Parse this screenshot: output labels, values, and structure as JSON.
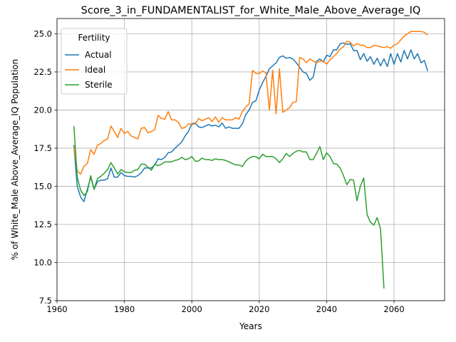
{
  "chart_data": {
    "type": "line",
    "title": "Score_3_in_FUNDAMENTALIST_for_White_Male_Above_Average_IQ",
    "xlabel": "Years",
    "ylabel": "% of White_Male Above_Average_IQ Population",
    "xlim": [
      1960,
      2075
    ],
    "ylim": [
      7.5,
      26.0
    ],
    "xticks": [
      1960,
      1980,
      2000,
      2020,
      2040,
      2060
    ],
    "yticks": [
      7.5,
      10.0,
      12.5,
      15.0,
      17.5,
      20.0,
      22.5,
      25.0
    ],
    "grid": true,
    "legend": {
      "title": "Fertility",
      "position": "upper-left"
    },
    "series": [
      {
        "name": "Actual",
        "color": "#1f77b4",
        "points": [
          [
            1965,
            17.7
          ],
          [
            1966,
            15.0
          ],
          [
            1967,
            14.3
          ],
          [
            1968,
            14.0
          ],
          [
            1969,
            14.8
          ],
          [
            1970,
            15.6
          ],
          [
            1971,
            14.8
          ],
          [
            1972,
            15.3
          ],
          [
            1973,
            15.4
          ],
          [
            1974,
            15.4
          ],
          [
            1975,
            15.5
          ],
          [
            1976,
            16.2
          ],
          [
            1977,
            15.6
          ],
          [
            1978,
            15.6
          ],
          [
            1979,
            15.9
          ],
          [
            1980,
            15.7
          ],
          [
            1981,
            15.65
          ],
          [
            1982,
            15.65
          ],
          [
            1983,
            15.6
          ],
          [
            1984,
            15.7
          ],
          [
            1985,
            15.9
          ],
          [
            1986,
            16.2
          ],
          [
            1987,
            16.2
          ],
          [
            1988,
            16.2
          ],
          [
            1989,
            16.4
          ],
          [
            1990,
            16.8
          ],
          [
            1991,
            16.75
          ],
          [
            1992,
            16.9
          ],
          [
            1993,
            17.2
          ],
          [
            1994,
            17.25
          ],
          [
            1995,
            17.5
          ],
          [
            1996,
            17.7
          ],
          [
            1997,
            17.9
          ],
          [
            1998,
            18.3
          ],
          [
            1999,
            18.6
          ],
          [
            2000,
            19.1
          ],
          [
            2001,
            19.15
          ],
          [
            2002,
            18.9
          ],
          [
            2003,
            18.85
          ],
          [
            2004,
            18.95
          ],
          [
            2005,
            19.05
          ],
          [
            2006,
            18.95
          ],
          [
            2007,
            19.0
          ],
          [
            2008,
            18.9
          ],
          [
            2009,
            19.15
          ],
          [
            2010,
            18.8
          ],
          [
            2011,
            18.9
          ],
          [
            2012,
            18.8
          ],
          [
            2013,
            18.8
          ],
          [
            2014,
            18.8
          ],
          [
            2015,
            19.1
          ],
          [
            2016,
            19.7
          ],
          [
            2017,
            20.0
          ],
          [
            2018,
            20.5
          ],
          [
            2019,
            20.6
          ],
          [
            2020,
            21.3
          ],
          [
            2021,
            21.8
          ],
          [
            2022,
            22.2
          ],
          [
            2023,
            22.7
          ],
          [
            2024,
            22.9
          ],
          [
            2025,
            23.1
          ],
          [
            2026,
            23.45
          ],
          [
            2027,
            23.55
          ],
          [
            2028,
            23.4
          ],
          [
            2029,
            23.45
          ],
          [
            2030,
            23.35
          ],
          [
            2031,
            23.1
          ],
          [
            2032,
            22.8
          ],
          [
            2033,
            22.5
          ],
          [
            2034,
            22.4
          ],
          [
            2035,
            21.95
          ],
          [
            2036,
            22.15
          ],
          [
            2037,
            23.2
          ],
          [
            2038,
            23.35
          ],
          [
            2039,
            23.15
          ],
          [
            2040,
            23.6
          ],
          [
            2041,
            23.5
          ],
          [
            2042,
            23.95
          ],
          [
            2043,
            23.95
          ],
          [
            2044,
            24.35
          ],
          [
            2045,
            24.4
          ],
          [
            2046,
            24.3
          ],
          [
            2047,
            24.35
          ],
          [
            2048,
            23.9
          ],
          [
            2049,
            23.9
          ],
          [
            2050,
            23.3
          ],
          [
            2051,
            23.7
          ],
          [
            2052,
            23.2
          ],
          [
            2053,
            23.5
          ],
          [
            2054,
            23.0
          ],
          [
            2055,
            23.4
          ],
          [
            2056,
            22.9
          ],
          [
            2057,
            23.35
          ],
          [
            2058,
            22.85
          ],
          [
            2059,
            23.7
          ],
          [
            2060,
            23.0
          ],
          [
            2061,
            23.7
          ],
          [
            2062,
            23.15
          ],
          [
            2063,
            23.9
          ],
          [
            2064,
            23.35
          ],
          [
            2065,
            23.95
          ],
          [
            2066,
            23.35
          ],
          [
            2067,
            23.7
          ],
          [
            2068,
            23.1
          ],
          [
            2069,
            23.25
          ],
          [
            2070,
            22.55
          ]
        ]
      },
      {
        "name": "Ideal",
        "color": "#ff7f0e",
        "points": [
          [
            1965,
            17.6
          ],
          [
            1966,
            16.0
          ],
          [
            1967,
            15.8
          ],
          [
            1968,
            16.3
          ],
          [
            1969,
            16.5
          ],
          [
            1970,
            17.4
          ],
          [
            1971,
            17.1
          ],
          [
            1972,
            17.7
          ],
          [
            1973,
            17.8
          ],
          [
            1974,
            18.0
          ],
          [
            1975,
            18.1
          ],
          [
            1976,
            18.95
          ],
          [
            1977,
            18.6
          ],
          [
            1978,
            18.2
          ],
          [
            1979,
            18.8
          ],
          [
            1980,
            18.45
          ],
          [
            1981,
            18.6
          ],
          [
            1982,
            18.3
          ],
          [
            1983,
            18.2
          ],
          [
            1984,
            18.1
          ],
          [
            1985,
            18.8
          ],
          [
            1986,
            18.85
          ],
          [
            1987,
            18.5
          ],
          [
            1988,
            18.6
          ],
          [
            1989,
            18.7
          ],
          [
            1990,
            19.65
          ],
          [
            1991,
            19.45
          ],
          [
            1992,
            19.4
          ],
          [
            1993,
            19.9
          ],
          [
            1994,
            19.35
          ],
          [
            1995,
            19.35
          ],
          [
            1996,
            19.2
          ],
          [
            1997,
            18.8
          ],
          [
            1998,
            18.85
          ],
          [
            1999,
            19.1
          ],
          [
            2000,
            19.05
          ],
          [
            2001,
            19.1
          ],
          [
            2002,
            19.45
          ],
          [
            2003,
            19.3
          ],
          [
            2004,
            19.4
          ],
          [
            2005,
            19.5
          ],
          [
            2006,
            19.25
          ],
          [
            2007,
            19.55
          ],
          [
            2008,
            19.2
          ],
          [
            2009,
            19.5
          ],
          [
            2010,
            19.35
          ],
          [
            2011,
            19.35
          ],
          [
            2012,
            19.35
          ],
          [
            2013,
            19.5
          ],
          [
            2014,
            19.4
          ],
          [
            2015,
            19.9
          ],
          [
            2016,
            20.2
          ],
          [
            2017,
            20.4
          ],
          [
            2018,
            22.6
          ],
          [
            2019,
            22.4
          ],
          [
            2020,
            22.4
          ],
          [
            2021,
            22.55
          ],
          [
            2022,
            22.45
          ],
          [
            2023,
            20.0
          ],
          [
            2024,
            22.6
          ],
          [
            2025,
            19.75
          ],
          [
            2026,
            22.7
          ],
          [
            2027,
            19.85
          ],
          [
            2028,
            20.0
          ],
          [
            2029,
            20.15
          ],
          [
            2030,
            20.5
          ],
          [
            2031,
            20.55
          ],
          [
            2032,
            23.45
          ],
          [
            2033,
            23.35
          ],
          [
            2034,
            23.1
          ],
          [
            2035,
            23.35
          ],
          [
            2036,
            23.2
          ],
          [
            2037,
            23.1
          ],
          [
            2038,
            23.2
          ],
          [
            2039,
            23.2
          ],
          [
            2040,
            23.0
          ],
          [
            2041,
            23.3
          ],
          [
            2042,
            23.5
          ],
          [
            2043,
            23.7
          ],
          [
            2044,
            24.0
          ],
          [
            2045,
            24.15
          ],
          [
            2046,
            24.5
          ],
          [
            2047,
            24.45
          ],
          [
            2048,
            24.2
          ],
          [
            2049,
            24.35
          ],
          [
            2050,
            24.25
          ],
          [
            2051,
            24.25
          ],
          [
            2052,
            24.1
          ],
          [
            2053,
            24.1
          ],
          [
            2054,
            24.25
          ],
          [
            2055,
            24.2
          ],
          [
            2056,
            24.15
          ],
          [
            2057,
            24.1
          ],
          [
            2058,
            24.15
          ],
          [
            2059,
            24.05
          ],
          [
            2060,
            24.25
          ],
          [
            2061,
            24.35
          ],
          [
            2062,
            24.6
          ],
          [
            2063,
            24.85
          ],
          [
            2064,
            25.0
          ],
          [
            2065,
            25.15
          ],
          [
            2066,
            25.15
          ],
          [
            2067,
            25.15
          ],
          [
            2068,
            25.15
          ],
          [
            2069,
            25.1
          ],
          [
            2070,
            24.9
          ]
        ]
      },
      {
        "name": "Sterile",
        "color": "#2ca02c",
        "points": [
          [
            1965,
            18.95
          ],
          [
            1966,
            15.6
          ],
          [
            1967,
            14.75
          ],
          [
            1968,
            14.4
          ],
          [
            1969,
            14.65
          ],
          [
            1970,
            15.7
          ],
          [
            1971,
            14.8
          ],
          [
            1972,
            15.5
          ],
          [
            1973,
            15.65
          ],
          [
            1974,
            15.85
          ],
          [
            1975,
            16.1
          ],
          [
            1976,
            16.55
          ],
          [
            1977,
            16.2
          ],
          [
            1978,
            15.8
          ],
          [
            1979,
            16.1
          ],
          [
            1980,
            15.95
          ],
          [
            1981,
            15.9
          ],
          [
            1982,
            15.9
          ],
          [
            1983,
            16.05
          ],
          [
            1984,
            16.1
          ],
          [
            1985,
            16.45
          ],
          [
            1986,
            16.45
          ],
          [
            1987,
            16.25
          ],
          [
            1988,
            16.05
          ],
          [
            1989,
            16.45
          ],
          [
            1990,
            16.35
          ],
          [
            1991,
            16.45
          ],
          [
            1992,
            16.6
          ],
          [
            1993,
            16.6
          ],
          [
            1994,
            16.6
          ],
          [
            1995,
            16.7
          ],
          [
            1996,
            16.75
          ],
          [
            1997,
            16.9
          ],
          [
            1998,
            16.75
          ],
          [
            1999,
            16.8
          ],
          [
            2000,
            16.95
          ],
          [
            2001,
            16.65
          ],
          [
            2002,
            16.65
          ],
          [
            2003,
            16.85
          ],
          [
            2004,
            16.75
          ],
          [
            2005,
            16.75
          ],
          [
            2006,
            16.7
          ],
          [
            2007,
            16.8
          ],
          [
            2008,
            16.75
          ],
          [
            2009,
            16.75
          ],
          [
            2010,
            16.7
          ],
          [
            2011,
            16.6
          ],
          [
            2012,
            16.5
          ],
          [
            2013,
            16.4
          ],
          [
            2014,
            16.4
          ],
          [
            2015,
            16.3
          ],
          [
            2016,
            16.65
          ],
          [
            2017,
            16.85
          ],
          [
            2018,
            16.95
          ],
          [
            2019,
            16.95
          ],
          [
            2020,
            16.8
          ],
          [
            2021,
            17.1
          ],
          [
            2022,
            16.95
          ],
          [
            2023,
            16.95
          ],
          [
            2024,
            16.95
          ],
          [
            2025,
            16.8
          ],
          [
            2026,
            16.55
          ],
          [
            2027,
            16.8
          ],
          [
            2028,
            17.15
          ],
          [
            2029,
            16.95
          ],
          [
            2030,
            17.15
          ],
          [
            2031,
            17.3
          ],
          [
            2032,
            17.35
          ],
          [
            2033,
            17.25
          ],
          [
            2034,
            17.25
          ],
          [
            2035,
            16.75
          ],
          [
            2036,
            16.75
          ],
          [
            2037,
            17.15
          ],
          [
            2038,
            17.6
          ],
          [
            2039,
            16.75
          ],
          [
            2040,
            17.2
          ],
          [
            2041,
            16.95
          ],
          [
            2042,
            16.5
          ],
          [
            2043,
            16.45
          ],
          [
            2044,
            16.2
          ],
          [
            2045,
            15.7
          ],
          [
            2046,
            15.1
          ],
          [
            2047,
            15.45
          ],
          [
            2048,
            15.4
          ],
          [
            2049,
            14.05
          ],
          [
            2050,
            15.0
          ],
          [
            2051,
            15.55
          ],
          [
            2052,
            13.15
          ],
          [
            2053,
            12.65
          ],
          [
            2054,
            12.45
          ],
          [
            2055,
            12.95
          ],
          [
            2056,
            12.2
          ],
          [
            2057,
            8.3
          ]
        ]
      }
    ]
  }
}
